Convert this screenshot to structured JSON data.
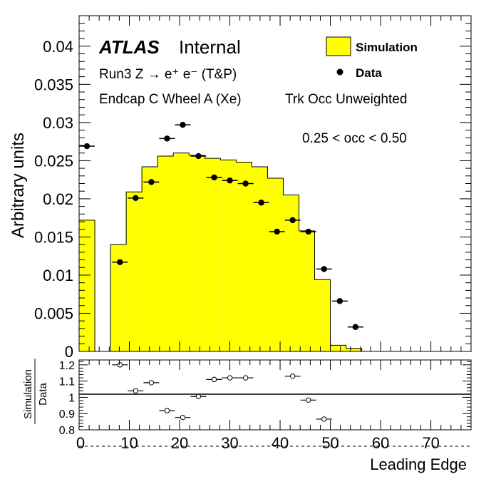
{
  "chart_data": [
    {
      "type": "bar",
      "panel": "main",
      "ylabel": "Arbitrary units",
      "xlim": [
        0,
        78
      ],
      "ylim": [
        0,
        0.044
      ],
      "yticks": [
        "0",
        "0.005",
        "0.01",
        "0.015",
        "0.02",
        "0.025",
        "0.03",
        "0.035",
        "0.04"
      ],
      "ytick_values": [
        0,
        0.005,
        0.01,
        0.015,
        0.02,
        0.025,
        0.03,
        0.035,
        0.04
      ],
      "labels": {
        "experiment": "ATLAS",
        "status": "Internal",
        "process": "Run3 Z → e⁺ e⁻ (T&P)",
        "region": "Endcap C Wheel A (Xe)",
        "weighting": "Trk Occ Unweighted",
        "cut": "0.25 < occ < 0.50"
      },
      "legend": {
        "position": "top-right",
        "entries": [
          "Simulation",
          "Data"
        ]
      },
      "series": [
        {
          "name": "Simulation",
          "style": "filled-histogram",
          "color": "#ffff00",
          "bin_edges": [
            0,
            3.125,
            6.25,
            9.375,
            12.5,
            15.625,
            18.75,
            21.875,
            25,
            28.125,
            31.25,
            34.375,
            37.5,
            40.625,
            43.75,
            46.875,
            50,
            53.125,
            56.25,
            59.375,
            62.5,
            65.625,
            68.75,
            71.875,
            75,
            78.125
          ],
          "values": [
            0.0172,
            0,
            0.014,
            0.0209,
            0.0242,
            0.0256,
            0.026,
            0.0257,
            0.0253,
            0.0251,
            0.0248,
            0.0242,
            0.0227,
            0.0205,
            0.0158,
            0.0094,
            0.0008,
            0.0004,
            0,
            0,
            0,
            0,
            0,
            0,
            0
          ]
        },
        {
          "name": "Data",
          "style": "points-with-xerr",
          "color": "#000000",
          "x": [
            1.56,
            8.13,
            11.25,
            14.38,
            17.5,
            20.63,
            23.75,
            26.88,
            30.0,
            33.13,
            36.25,
            39.38,
            42.5,
            45.63,
            48.75,
            51.88,
            55.0
          ],
          "xerr": 1.56,
          "values": [
            0.0269,
            0.0117,
            0.0201,
            0.0222,
            0.0279,
            0.0297,
            0.0256,
            0.0228,
            0.0224,
            0.022,
            0.0195,
            0.0157,
            0.0172,
            0.0157,
            0.0108,
            0.0066,
            0.0032
          ]
        }
      ]
    },
    {
      "type": "scatter",
      "panel": "ratio",
      "ylabel_top": "Simulation",
      "ylabel_bottom": "Data",
      "xlabel": "Leading Edge",
      "xlim": [
        0,
        78
      ],
      "ylim": [
        0.8,
        1.23
      ],
      "yticks": [
        "0.8",
        "0.9",
        "1",
        "1.1",
        "1.2"
      ],
      "ytick_values": [
        0.8,
        0.9,
        1.0,
        1.1,
        1.2
      ],
      "xticks": [
        "0",
        "10",
        "20",
        "30",
        "40",
        "50",
        "60",
        "70"
      ],
      "xtick_values": [
        0,
        10,
        20,
        30,
        40,
        50,
        60,
        70
      ],
      "reference_line": 1.0,
      "series": [
        {
          "name": "Simulation/Data",
          "style": "open-points-with-xerr",
          "x": [
            8.13,
            11.25,
            14.38,
            17.5,
            20.63,
            23.75,
            26.88,
            30.0,
            33.13,
            42.5,
            45.63,
            48.75
          ],
          "xerr": 1.56,
          "values": [
            1.2,
            1.04,
            1.09,
            0.918,
            0.876,
            1.005,
            1.11,
            1.12,
            1.12,
            1.13,
            0.983,
            0.866
          ]
        }
      ]
    }
  ]
}
